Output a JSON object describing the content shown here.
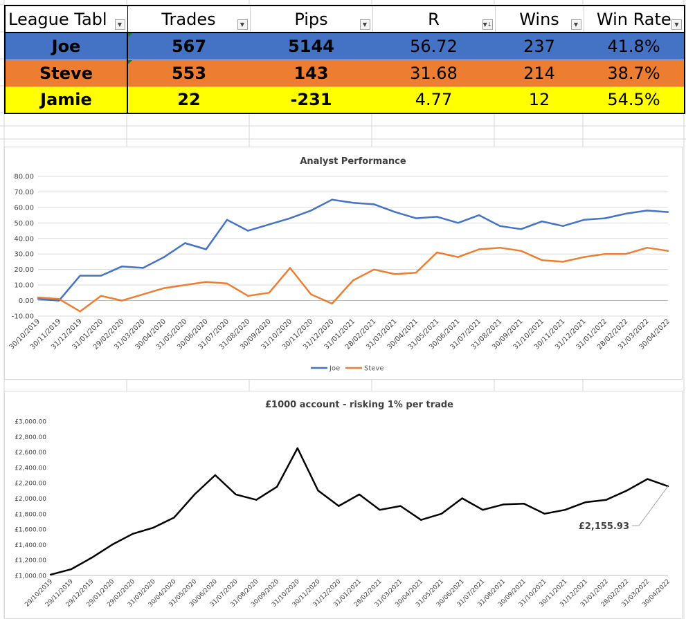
{
  "league_table": {
    "columns": [
      "League Tabl",
      "Trades",
      "Pips",
      "R",
      "Wins",
      "Win Rate"
    ],
    "rows": [
      [
        "Joe",
        "567",
        "5144",
        "56.72",
        "237",
        "41.8%"
      ],
      [
        "Steve",
        "553",
        "143",
        "31.68",
        "214",
        "38.7%"
      ],
      [
        "Jamie",
        "22",
        "-231",
        "4.77",
        "12",
        "54.5%"
      ]
    ],
    "row_colors": [
      "#4472c4",
      "#ed7d31",
      "#ffff00"
    ]
  },
  "chart_data": [
    {
      "type": "line",
      "title": "Analyst Performance",
      "xlabel": "",
      "ylabel": "",
      "ylim": [
        -10,
        80
      ],
      "y_ticks": [
        "80.00",
        "70.00",
        "60.00",
        "50.00",
        "40.00",
        "30.00",
        "20.00",
        "10.00",
        "0.00",
        "-10.00"
      ],
      "x_tick_labels": [
        "30/10/2019",
        "30/11/2019",
        "31/12/2019",
        "31/01/2020",
        "29/02/2020",
        "31/03/2020",
        "30/04/2020",
        "31/05/2020",
        "30/06/2020",
        "31/07/2020",
        "31/08/2020",
        "30/09/2020",
        "31/10/2020",
        "30/11/2020",
        "31/12/2020",
        "31/01/2021",
        "28/02/2021",
        "31/03/2021",
        "30/04/2021",
        "31/05/2021",
        "30/06/2021",
        "31/07/2021",
        "31/08/2021",
        "30/09/2021",
        "31/10/2021",
        "30/11/2021",
        "31/12/2021",
        "31/01/2022",
        "28/02/2022",
        "31/03/2022",
        "30/04/2022"
      ],
      "grid": true,
      "legend": "bottom",
      "colors": [
        "#4472c4",
        "#ed7d31"
      ],
      "series": [
        {
          "name": "Joe",
          "values": [
            1,
            0,
            16,
            16,
            22,
            21,
            28,
            37,
            33,
            52,
            45,
            49,
            53,
            58,
            65,
            63,
            62,
            57,
            53,
            54,
            50,
            55,
            48,
            46,
            51,
            48,
            52,
            53,
            56,
            58,
            57
          ]
        },
        {
          "name": "Steve",
          "values": [
            2,
            1,
            -7,
            3,
            0,
            4,
            8,
            10,
            12,
            11,
            3,
            5,
            21,
            4,
            -2,
            13,
            20,
            17,
            18,
            31,
            28,
            33,
            34,
            32,
            26,
            25,
            28,
            30,
            30,
            34,
            32
          ]
        }
      ]
    },
    {
      "type": "line",
      "title": "£1000 account - risking 1% per trade",
      "xlabel": "",
      "ylabel": "",
      "ylim": [
        1000,
        3000
      ],
      "y_ticks": [
        "£3,000.00",
        "£2,800.00",
        "£2,600.00",
        "£2,400.00",
        "£2,200.00",
        "£2,000.00",
        "£1,800.00",
        "£1,600.00",
        "£1,400.00",
        "£1,200.00",
        "£1,000.00"
      ],
      "x_tick_labels": [
        "29/10/2019",
        "29/11/2019",
        "29/12/2019",
        "29/01/2020",
        "29/02/2020",
        "31/03/2020",
        "30/04/2020",
        "31/05/2020",
        "30/06/2020",
        "31/07/2020",
        "31/08/2020",
        "30/09/2020",
        "31/10/2020",
        "30/11/2020",
        "31/12/2020",
        "31/01/2021",
        "28/02/2021",
        "31/03/2021",
        "30/04/2021",
        "31/05/2021",
        "30/06/2021",
        "31/07/2021",
        "31/08/2021",
        "30/09/2021",
        "31/10/2021",
        "30/11/2021",
        "31/12/2021",
        "31/01/2022",
        "28/02/2022",
        "31/03/2022",
        "30/04/2022"
      ],
      "grid": false,
      "legend": "none",
      "colors": [
        "#000000"
      ],
      "annotation": "£2,155.93",
      "series": [
        {
          "values": [
            1010,
            1080,
            1230,
            1400,
            1540,
            1620,
            1750,
            2050,
            2300,
            2050,
            1980,
            2150,
            2650,
            2100,
            1900,
            2050,
            1850,
            1900,
            1720,
            1800,
            2000,
            1850,
            1920,
            1930,
            1800,
            1850,
            1950,
            1980,
            2100,
            2250,
            2156
          ]
        }
      ]
    }
  ]
}
